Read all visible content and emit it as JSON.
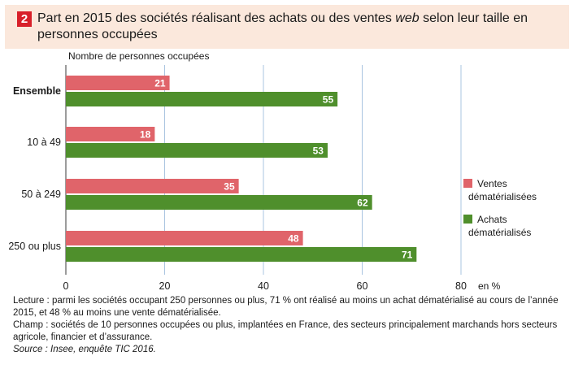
{
  "figure_number": "2",
  "title_parts": [
    "Part en 2015 des sociétés réalisant des achats ou des ventes ",
    "web",
    " selon leur taille en personnes occupées"
  ],
  "notes": {
    "lecture": "Lecture : parmi les sociétés occupant 250 personnes ou plus, 71 % ont réalisé au moins un achat dématérialisé au cours de l’année 2015, et 48 % au moins une vente dématérialisée.",
    "champ": "Champ : sociétés de 10 personnes occupées ou plus, implantées en France, des secteurs principalement marchands hors secteurs agricole, financier et d’assurance.",
    "source": "Source : Insee, enquête TIC 2016."
  },
  "chart_data": {
    "type": "bar",
    "orientation": "horizontal",
    "ylabel": "Nombre de personnes occupées",
    "xunit": "en %",
    "categories": [
      "Ensemble",
      "10 à 49",
      "50 à 249",
      "250 ou plus"
    ],
    "bold_categories": [
      "Ensemble"
    ],
    "series": [
      {
        "name": "Ventes dématérialisées",
        "color": "#e0646a",
        "values": [
          21,
          18,
          35,
          48
        ]
      },
      {
        "name": "Achats dématérialisés",
        "color": "#4f8f2c",
        "values": [
          55,
          53,
          62,
          71
        ]
      }
    ],
    "xlim": [
      0,
      80
    ],
    "xticks": [
      0,
      20,
      40,
      60,
      80
    ],
    "grid": true,
    "legend_position": "right",
    "data_labels": true
  }
}
